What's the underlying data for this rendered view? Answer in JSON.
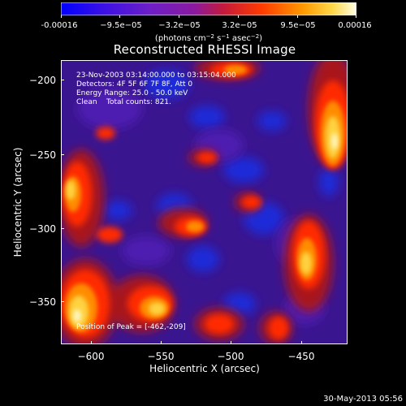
{
  "colorbar": {
    "labels": [
      "-0.00016",
      "−9.5e−05",
      "−3.2e−05",
      "3.2e−05",
      "9.5e−05",
      "0.00016"
    ],
    "units_prefix": "(photons cm",
    "units_exp1": "−2",
    "units_mid": " s",
    "units_exp2": "−1",
    "units_mid2": " asec",
    "units_exp3": "−2",
    "units_suffix": ")",
    "colors": [
      "#0000ff",
      "#5a12d8",
      "#7a26c7",
      "#a0148c",
      "#d81f1f",
      "#ff6a00",
      "#ffb400",
      "#ffff9c"
    ]
  },
  "title": "Reconstructed RHESSI Image",
  "info": {
    "line1": "23-Nov-2003 03:14:00.000 to 03:15:04.000",
    "line2": "Detectors: 4F 5F 6F 7F 8F, Att 0",
    "line3": "Energy Range: 25.0 - 50.0 keV",
    "line4": "Clean    Total counts: 821."
  },
  "peak": "Position of Peak = [-462,-209]",
  "x_axis": {
    "label": "Heliocentric X (arcsec)",
    "ticks": [
      "−600",
      "−550",
      "−500",
      "−450"
    ]
  },
  "y_axis": {
    "label": "Heliocentric Y (arcsec)",
    "ticks": [
      "−200",
      "−250",
      "−300",
      "−350"
    ]
  },
  "timestamp": "30-May-2013 05:56"
}
